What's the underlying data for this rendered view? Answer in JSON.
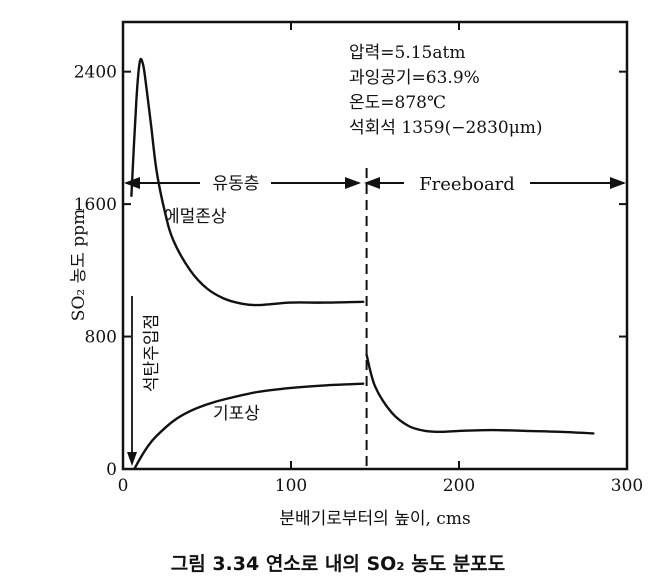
{
  "chart_data": {
    "type": "line",
    "title": "",
    "xlabel": "분배기로부터의 높이, cms",
    "ylabel": "SO₂ 농도 ppm",
    "xlim": [
      0,
      300
    ],
    "ylim": [
      0,
      2700
    ],
    "x_ticks": [
      "0",
      "100",
      "200",
      "300"
    ],
    "y_ticks": [
      "0",
      "800",
      "1600",
      "2400"
    ],
    "grid": false,
    "annotations": {
      "conditions": [
        "압력=5.15atm",
        "과잉공기=63.9%",
        "온도=878℃",
        "석회석 1359(−2830μm)"
      ],
      "bed_region": "유동층",
      "freeboard_region": "Freeboard",
      "injection_point": "석탄주입점",
      "bed_top_x": 145
    },
    "series": [
      {
        "name": "에멀존상",
        "x": [
          5,
          8,
          10,
          12,
          14,
          17,
          20,
          25,
          30,
          40,
          50,
          60,
          70,
          80,
          100,
          120,
          143
        ],
        "y": [
          1650,
          2230,
          2460,
          2440,
          2300,
          2050,
          1800,
          1550,
          1380,
          1200,
          1090,
          1030,
          1000,
          990,
          1005,
          1005,
          1010
        ]
      },
      {
        "name": "기포상",
        "x": [
          7,
          10,
          15,
          20,
          30,
          40,
          50,
          60,
          80,
          100,
          120,
          143
        ],
        "y": [
          5,
          60,
          140,
          200,
          290,
          350,
          390,
          420,
          465,
          490,
          505,
          515
        ]
      },
      {
        "name": "Freeboard",
        "x": [
          145,
          150,
          160,
          170,
          180,
          190,
          200,
          220,
          240,
          260,
          280
        ],
        "y": [
          690,
          500,
          340,
          260,
          230,
          225,
          230,
          235,
          230,
          225,
          215
        ]
      }
    ]
  },
  "caption": "그림 3.34  연소로 내의 SO₂ 농도 분포도"
}
